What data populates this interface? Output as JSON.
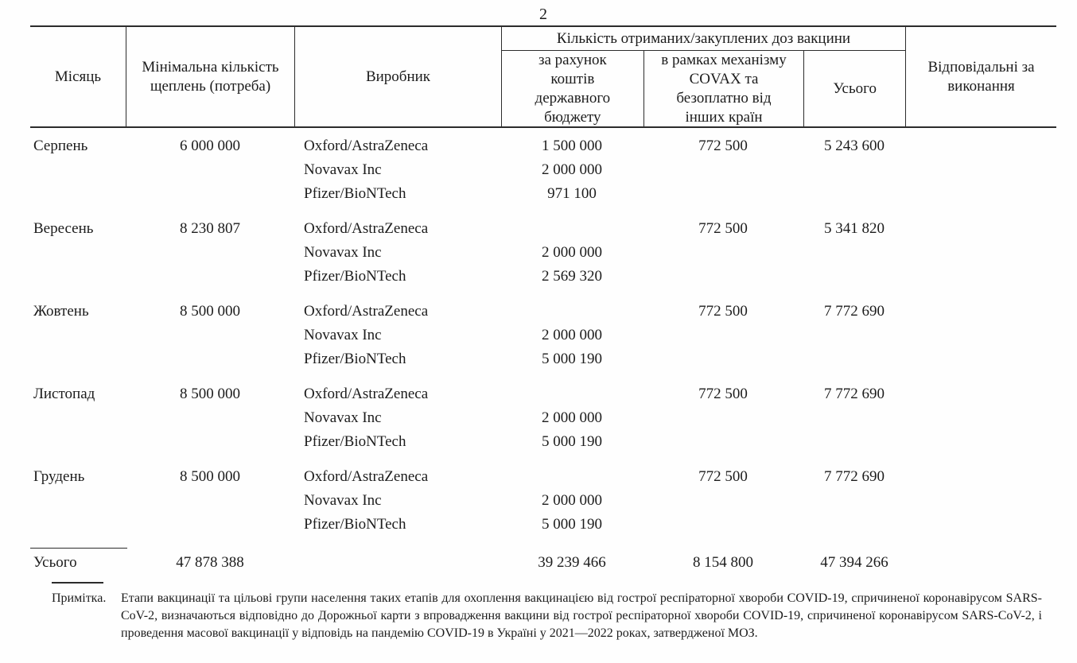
{
  "page": {
    "number": "2"
  },
  "table": {
    "headers": {
      "month": "Місяць",
      "min_quantity": "Мінімальна кількість щеплень (потреба)",
      "manufacturer": "Виробник",
      "doses_group": "Кількість отриманих/закуплених доз вакцини",
      "state_budget": "за рахунок коштів державного бюджету",
      "covax": "в рамках механізму COVAX та безоплатно від інших країн",
      "total": "Усього",
      "responsible": "Відповідальні за виконання"
    },
    "groups": [
      {
        "month": "Серпень",
        "min_quantity": "6 000 000",
        "rows": [
          {
            "manufacturer": "Oxford/AstraZeneca",
            "budget": "1 500 000",
            "covax": "772 500",
            "total": "5 243 600"
          },
          {
            "manufacturer": "Novavax Inc",
            "budget": "2 000 000",
            "covax": "",
            "total": ""
          },
          {
            "manufacturer": "Pfizer/BioNTech",
            "budget": "971 100",
            "covax": "",
            "total": ""
          }
        ]
      },
      {
        "month": "Вересень",
        "min_quantity": "8 230 807",
        "rows": [
          {
            "manufacturer": "Oxford/AstraZeneca",
            "budget": "",
            "covax": "772 500",
            "total": "5 341 820"
          },
          {
            "manufacturer": "Novavax Inc",
            "budget": "2 000 000",
            "covax": "",
            "total": ""
          },
          {
            "manufacturer": "Pfizer/BioNTech",
            "budget": "2 569 320",
            "covax": "",
            "total": ""
          }
        ]
      },
      {
        "month": "Жовтень",
        "min_quantity": "8 500 000",
        "rows": [
          {
            "manufacturer": "Oxford/AstraZeneca",
            "budget": "",
            "covax": "772 500",
            "total": "7 772 690"
          },
          {
            "manufacturer": "Novavax Inc",
            "budget": "2 000 000",
            "covax": "",
            "total": ""
          },
          {
            "manufacturer": "Pfizer/BioNTech",
            "budget": "5 000 190",
            "covax": "",
            "total": ""
          }
        ]
      },
      {
        "month": "Листопад",
        "min_quantity": "8 500 000",
        "rows": [
          {
            "manufacturer": "Oxford/AstraZeneca",
            "budget": "",
            "covax": "772 500",
            "total": "7 772 690"
          },
          {
            "manufacturer": "Novavax Inc",
            "budget": "2 000 000",
            "covax": "",
            "total": ""
          },
          {
            "manufacturer": "Pfizer/BioNTech",
            "budget": "5 000 190",
            "covax": "",
            "total": ""
          }
        ]
      },
      {
        "month": "Грудень",
        "min_quantity": "8 500 000",
        "rows": [
          {
            "manufacturer": "Oxford/AstraZeneca",
            "budget": "",
            "covax": "772 500",
            "total": "7 772 690"
          },
          {
            "manufacturer": "Novavax Inc",
            "budget": "2 000 000",
            "covax": "",
            "total": ""
          },
          {
            "manufacturer": "Pfizer/BioNTech",
            "budget": "5 000 190",
            "covax": "",
            "total": ""
          }
        ]
      }
    ],
    "total_row": {
      "label": "Усього",
      "min_quantity": "47 878 388",
      "budget": "39 239 466",
      "covax": "8 154 800",
      "total": "47 394 266"
    }
  },
  "footnote": {
    "label": "Примітка.",
    "text": "Етапи вакцинації та цільові групи населення таких етапів для охоплення вакцинацією від гострої респіраторної хвороби COVID-19, спричиненої коронавірусом SARS-CoV-2, визначаються відповідно до Дорожньої карти з впровадження вакцини від гострої респіраторної хвороби COVID-19, спричиненої коронавірусом SARS-CoV-2, і проведення масової вакцинації у відповідь на пандемію COVID-19 в Україні у 2021—2022 роках, затвердженої МОЗ."
  }
}
